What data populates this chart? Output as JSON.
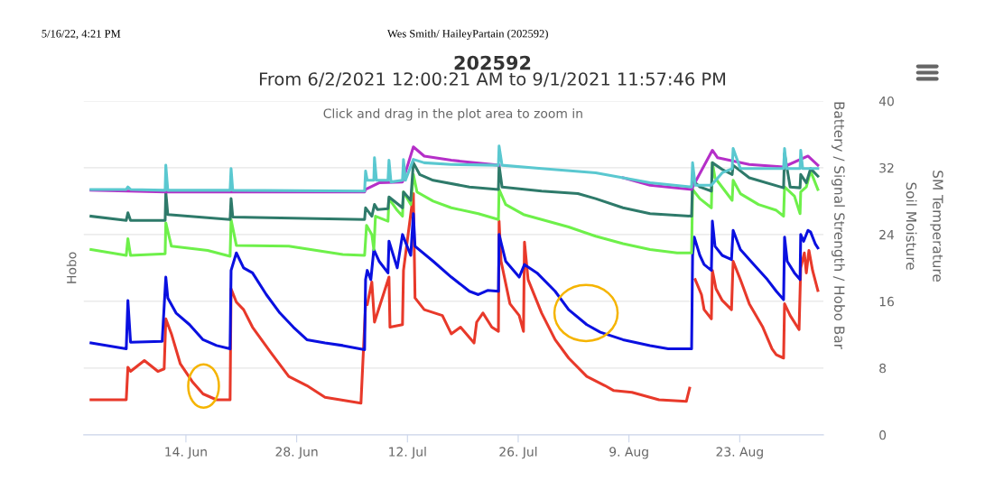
{
  "chart_data": {
    "type": "line",
    "title": "202592",
    "subtitle": "From 6/2/2021 12:00:21 AM to 9/1/2021 11:57:46 PM",
    "ylabel": "Hobo",
    "y2label": "Battery / Signal Strength / Hobo Bar",
    "annotations": [
      "5/16/22, 4:21 PM",
      "Wes Smith/ HaileyPartain (202592)",
      "Click and drag in the plot area to zoom in",
      "Soil Moisture",
      "SM Temperature"
    ],
    "xlim": [
      "2021-06-01T02:00",
      "2021-09-02T14:00"
    ],
    "xticks": [
      {
        "value": "2021-06-14",
        "label": "14. Jun"
      },
      {
        "value": "2021-06-28",
        "label": "28. Jun"
      },
      {
        "value": "2021-07-12",
        "label": "12. Jul"
      },
      {
        "value": "2021-07-26",
        "label": "26. Jul"
      },
      {
        "value": "2021-08-09",
        "label": "9. Aug"
      },
      {
        "value": "2021-08-23",
        "label": "23. Aug"
      }
    ],
    "ylim": [
      0,
      40
    ],
    "yticks": [
      0,
      8,
      16,
      24,
      32,
      40
    ],
    "grid": "y",
    "legend": false,
    "marker": "none",
    "line_style": "solid",
    "series": [
      {
        "color": "#e8392a",
        "x": [
          "2021-06-02T00:00",
          "2021-06-06T11:00",
          "2021-06-06T16:00",
          "2021-06-07T00:00",
          "2021-06-08T18:00",
          "2021-06-10T11:00",
          "2021-06-11T06:00",
          "2021-06-11T11:00",
          "2021-06-12T04:00",
          "2021-06-13T07:00",
          "2021-06-14T19:00",
          "2021-06-16T04:00",
          "2021-06-17T21:00",
          "2021-06-19T14:00",
          "2021-06-19T17:00",
          "2021-06-20T09:00",
          "2021-06-21T07:00",
          "2021-06-22T10:00",
          "2021-06-24T17:00",
          "2021-06-27T00:00",
          "2021-06-29T07:00",
          "2021-07-01T14:00",
          "2021-07-06T03:00",
          "2021-07-06T17:00",
          "2021-07-06T22:00",
          "2021-07-07T12:00",
          "2021-07-07T20:00",
          "2021-07-09T16:00",
          "2021-07-09T19:00",
          "2021-07-11T09:00",
          "2021-07-11T12:00",
          "2021-07-12T18:00",
          "2021-07-12T23:00",
          "2021-07-14T03:00",
          "2021-07-16T10:00",
          "2021-07-17T13:00",
          "2021-07-18T17:00",
          "2021-07-20T10:00",
          "2021-07-20T18:00",
          "2021-07-21T13:00",
          "2021-07-22T16:00",
          "2021-07-23T12:00",
          "2021-07-23T14:00",
          "2021-07-23T20:00",
          "2021-07-24T23:00",
          "2021-07-26T03:00",
          "2021-07-26T16:00",
          "2021-07-26T19:00",
          "2021-07-27T06:00",
          "2021-07-28T23:00",
          "2021-07-30T16:00",
          "2021-08-01T09:00",
          "2021-08-03T16:00",
          "2021-08-05T23:00",
          "2021-08-07T02:00",
          "2021-08-09T09:00",
          "2021-08-12T19:00",
          "2021-08-16T06:00",
          "2021-08-16T16:00",
          "2021-08-17T01:00",
          "2021-08-17T09:00",
          "2021-08-18T04:00",
          "2021-08-18T12:00",
          "2021-08-19T10:00",
          "2021-08-19T13:00",
          "2021-08-20T00:00",
          "2021-08-20T19:00",
          "2021-08-21T23:00",
          "2021-08-22T04:00",
          "2021-08-23T02:00",
          "2021-08-24T05:00",
          "2021-08-25T22:00",
          "2021-08-27T02:00",
          "2021-08-27T15:00",
          "2021-08-28T13:00",
          "2021-08-28T16:00",
          "2021-08-29T09:00",
          "2021-08-30T12:00",
          "2021-08-30T17:00",
          "2021-08-31T04:00",
          "2021-08-31T10:00",
          "2021-08-31T18:00",
          "2021-09-01T05:00",
          "2021-09-01T21:00"
        ],
        "values": [
          4.2,
          4.2,
          8.1,
          7.6,
          8.9,
          7.6,
          7.9,
          13.9,
          12.1,
          8.5,
          6.4,
          4.9,
          4.2,
          4.2,
          17.5,
          15.9,
          15.0,
          12.9,
          9.9,
          7.0,
          5.9,
          4.5,
          3.8,
          15.6,
          15.6,
          18.3,
          13.5,
          18.9,
          12.9,
          13.2,
          19.7,
          28.9,
          16.4,
          15.0,
          14.3,
          12.1,
          12.9,
          11.0,
          13.5,
          14.6,
          12.9,
          12.4,
          25.6,
          20.8,
          15.7,
          14.3,
          12.4,
          23.1,
          18.6,
          14.6,
          11.4,
          9.2,
          7.0,
          5.9,
          5.3,
          5.1,
          4.2,
          4.0,
          5.6,
          null,
          18.6,
          16.8,
          15.0,
          13.9,
          19.7,
          17.5,
          16.1,
          15.0,
          20.8,
          18.6,
          15.7,
          12.9,
          10.3,
          9.6,
          9.2,
          15.7,
          14.3,
          12.6,
          20.0,
          21.8,
          19.4,
          22.1,
          19.7,
          17.3
        ]
      },
      {
        "color": "#0a10e0",
        "x": [
          "2021-06-02T00:00",
          "2021-06-06T11:00",
          "2021-06-06T16:00",
          "2021-06-07T00:00",
          "2021-06-11T00:00",
          "2021-06-11T11:00",
          "2021-06-11T17:00",
          "2021-06-12T18:00",
          "2021-06-14T11:00",
          "2021-06-16T04:00",
          "2021-06-17T21:00",
          "2021-06-19T14:00",
          "2021-06-19T17:00",
          "2021-06-20T09:00",
          "2021-06-21T07:00",
          "2021-06-22T10:00",
          "2021-06-24T04:00",
          "2021-06-25T21:00",
          "2021-06-27T14:00",
          "2021-06-29T07:00",
          "2021-07-01T14:00",
          "2021-07-03T20:00",
          "2021-07-06T14:00",
          "2021-07-06T17:00",
          "2021-07-06T22:00",
          "2021-07-07T09:00",
          "2021-07-07T18:00",
          "2021-07-08T10:00",
          "2021-07-09T13:00",
          "2021-07-09T16:00",
          "2021-07-10T17:00",
          "2021-07-11T09:00",
          "2021-07-12T10:00",
          "2021-07-12T18:00",
          "2021-07-12T23:00",
          "2021-07-15T06:00",
          "2021-07-17T13:00",
          "2021-07-19T20:00",
          "2021-07-20T23:00",
          "2021-07-22T03:00",
          "2021-07-23T12:00",
          "2021-07-23T14:00",
          "2021-07-24T10:00",
          "2021-07-26T03:00",
          "2021-07-26T19:00",
          "2021-07-28T09:00",
          "2021-07-30T16:00",
          "2021-08-01T09:00",
          "2021-08-03T16:00",
          "2021-08-05T09:00",
          "2021-08-08T06:00",
          "2021-08-11T16:00",
          "2021-08-13T23:00",
          "2021-08-16T22:00",
          "2021-08-17T01:00",
          "2021-08-17T06:00",
          "2021-08-17T23:00",
          "2021-08-18T12:00",
          "2021-08-19T10:00",
          "2021-08-19T13:00",
          "2021-08-19T21:00",
          "2021-08-20T19:00",
          "2021-08-21T23:00",
          "2021-08-22T04:00",
          "2021-08-23T02:00",
          "2021-08-24T19:00",
          "2021-08-26T12:00",
          "2021-08-27T15:00",
          "2021-08-28T13:00",
          "2021-08-28T16:00",
          "2021-08-29T00:00",
          "2021-08-29T22:00",
          "2021-08-30T15:00",
          "2021-08-30T17:00",
          "2021-08-31T02:00",
          "2021-08-31T15:00",
          "2021-08-31T23:00",
          "2021-09-01T13:00",
          "2021-09-01T21:00"
        ],
        "values": [
          11.0,
          10.3,
          16.1,
          11.1,
          11.2,
          18.9,
          16.4,
          14.6,
          13.2,
          11.4,
          10.7,
          10.3,
          19.7,
          21.8,
          20.0,
          19.4,
          16.8,
          14.6,
          12.9,
          11.4,
          11.0,
          10.7,
          10.2,
          18.6,
          19.7,
          18.6,
          22.2,
          20.8,
          19.4,
          23.2,
          20.0,
          24.0,
          21.5,
          26.5,
          22.6,
          20.8,
          18.9,
          17.2,
          16.8,
          17.3,
          17.2,
          24.0,
          20.8,
          18.9,
          20.4,
          19.4,
          17.2,
          15.0,
          13.2,
          12.3,
          11.4,
          10.7,
          10.3,
          10.3,
          21.5,
          23.7,
          21.5,
          20.4,
          19.7,
          25.6,
          22.6,
          21.5,
          21.0,
          24.5,
          22.2,
          20.4,
          18.6,
          17.2,
          16.2,
          23.7,
          20.8,
          19.4,
          18.6,
          24.0,
          23.2,
          24.5,
          24.3,
          22.9,
          22.4
        ]
      },
      {
        "color": "#6ef04a",
        "x": [
          "2021-06-02T00:00",
          "2021-06-06T11:00",
          "2021-06-06T16:00",
          "2021-06-07T00:00",
          "2021-06-11T09:00",
          "2021-06-11T11:00",
          "2021-06-12T04:00",
          "2021-06-16T18:00",
          "2021-06-19T14:00",
          "2021-06-19T17:00",
          "2021-06-20T09:00",
          "2021-06-27T00:00",
          "2021-07-03T20:00",
          "2021-07-06T14:00",
          "2021-07-06T20:00",
          "2021-07-07T12:00",
          "2021-07-07T18:00",
          "2021-07-07T23:00",
          "2021-07-09T13:00",
          "2021-07-09T16:00",
          "2021-07-10T17:00",
          "2021-07-11T09:00",
          "2021-07-11T12:00",
          "2021-07-12T10:00",
          "2021-07-12T18:00",
          "2021-07-13T05:00",
          "2021-07-15T06:00",
          "2021-07-17T13:00",
          "2021-07-20T23:00",
          "2021-07-23T12:00",
          "2021-07-23T14:00",
          "2021-07-24T10:00",
          "2021-07-26T16:00",
          "2021-07-28T23:00",
          "2021-08-01T09:00",
          "2021-08-04T19:00",
          "2021-08-08T06:00",
          "2021-08-11T16:00",
          "2021-08-15T02:00",
          "2021-08-16T22:00",
          "2021-08-17T01:00",
          "2021-08-17T23:00",
          "2021-08-19T10:00",
          "2021-08-19T13:00",
          "2021-08-19T21:00",
          "2021-08-22T01:00",
          "2021-08-22T04:00",
          "2021-08-23T02:00",
          "2021-08-25T09:00",
          "2021-08-27T15:00",
          "2021-08-28T13:00",
          "2021-08-28T16:00",
          "2021-08-29T22:00",
          "2021-08-30T15:00",
          "2021-08-30T17:00",
          "2021-08-31T10:00",
          "2021-08-31T23:00",
          "2021-09-01T21:00"
        ],
        "values": [
          22.2,
          21.5,
          23.5,
          21.5,
          21.7,
          25.4,
          22.6,
          22.1,
          21.4,
          25.8,
          22.7,
          22.6,
          21.6,
          21.5,
          25.1,
          24.0,
          22.2,
          26.2,
          25.6,
          28.3,
          26.9,
          26.2,
          29.1,
          27.6,
          31.2,
          29.1,
          28.0,
          27.2,
          26.5,
          25.8,
          29.4,
          27.6,
          26.4,
          25.8,
          24.9,
          23.8,
          22.9,
          22.2,
          21.8,
          21.8,
          29.4,
          28.3,
          27.2,
          32.6,
          30.8,
          28.1,
          30.5,
          28.9,
          27.6,
          26.9,
          26.2,
          29.7,
          28.6,
          26.5,
          29.1,
          29.7,
          31.6,
          29.4
        ]
      },
      {
        "color": "#2e7a6a",
        "x": [
          "2021-06-02T00:00",
          "2021-06-06T11:00",
          "2021-06-06T16:00",
          "2021-06-07T00:00",
          "2021-06-11T09:00",
          "2021-06-11T11:00",
          "2021-06-11T17:00",
          "2021-06-19T14:00",
          "2021-06-19T17:00",
          "2021-06-19T22:00",
          "2021-07-06T14:00",
          "2021-07-06T17:00",
          "2021-07-07T12:00",
          "2021-07-07T20:00",
          "2021-07-08T05:00",
          "2021-07-09T13:00",
          "2021-07-09T16:00",
          "2021-07-11T09:00",
          "2021-07-11T12:00",
          "2021-07-12T10:00",
          "2021-07-12T18:00",
          "2021-07-13T13:00",
          "2021-07-15T06:00",
          "2021-07-19T20:00",
          "2021-07-23T12:00",
          "2021-07-23T14:00",
          "2021-07-23T23:00",
          "2021-07-28T23:00",
          "2021-08-02T13:00",
          "2021-08-04T19:00",
          "2021-08-08T06:00",
          "2021-08-11T16:00",
          "2021-08-16T22:00",
          "2021-08-17T01:00",
          "2021-08-17T23:00",
          "2021-08-19T10:00",
          "2021-08-19T13:00",
          "2021-08-20T19:00",
          "2021-08-22T01:00",
          "2021-08-22T04:00",
          "2021-08-24T05:00",
          "2021-08-28T13:00",
          "2021-08-28T16:00",
          "2021-08-29T09:00",
          "2021-08-30T15:00",
          "2021-08-30T17:00",
          "2021-08-31T10:00",
          "2021-08-31T23:00",
          "2021-09-01T21:00"
        ],
        "values": [
          26.2,
          25.7,
          26.6,
          25.7,
          25.7,
          29.1,
          26.4,
          25.8,
          28.3,
          26.1,
          25.8,
          27.2,
          26.2,
          27.6,
          27.0,
          27.1,
          28.5,
          27.2,
          29.1,
          28.1,
          32.6,
          31.2,
          30.5,
          29.7,
          29.4,
          32.3,
          29.7,
          29.2,
          28.9,
          28.3,
          27.2,
          26.5,
          26.2,
          30.5,
          29.7,
          29.2,
          32.6,
          31.8,
          31.2,
          32.3,
          30.8,
          29.6,
          33.7,
          29.7,
          29.6,
          31.2,
          30.2,
          31.9,
          31.0
        ]
      },
      {
        "color": "#b52fc8",
        "x": [
          "2021-06-02T00:00",
          "2021-06-11T11:00",
          "2021-07-06T14:00",
          "2021-07-06T17:00",
          "2021-07-08T10:00",
          "2021-07-11T09:00",
          "2021-07-12T18:00",
          "2021-07-14T03:00",
          "2021-07-17T13:00",
          "2021-07-23T14:00",
          "2021-07-28T23:00",
          "2021-08-04T19:00",
          "2021-08-08T06:00",
          "2021-08-11T16:00",
          "2021-08-16T22:00",
          "2021-08-17T01:00",
          "2021-08-19T13:00",
          "2021-08-20T05:00",
          "2021-08-24T05:00",
          "2021-08-28T13:00",
          "2021-08-31T15:00",
          "2021-09-01T21:00"
        ],
        "values": [
          29.3,
          29.1,
          29.1,
          29.4,
          30.2,
          30.3,
          34.5,
          33.4,
          32.9,
          32.3,
          null,
          null,
          30.8,
          29.9,
          29.4,
          29.7,
          34.1,
          33.2,
          32.4,
          32.1,
          33.4,
          32.3
        ]
      },
      {
        "color": "#5ac8d0",
        "x": [
          "2021-06-02T00:00",
          "2021-06-06T11:00",
          "2021-06-06T16:00",
          "2021-06-07T00:00",
          "2021-06-11T09:00",
          "2021-06-11T11:00",
          "2021-06-11T17:00",
          "2021-06-19T14:00",
          "2021-06-19T17:00",
          "2021-06-19T22:00",
          "2021-07-06T14:00",
          "2021-07-06T17:00",
          "2021-07-06T22:00",
          "2021-07-07T18:00",
          "2021-07-07T20:00",
          "2021-07-08T02:00",
          "2021-07-09T13:00",
          "2021-07-09T16:00",
          "2021-07-09T22:00",
          "2021-07-11T09:00",
          "2021-07-11T12:00",
          "2021-07-11T18:00",
          "2021-07-12T18:00",
          "2021-07-14T03:00",
          "2021-07-17T13:00",
          "2021-07-23T12:00",
          "2021-07-23T14:00",
          "2021-07-23T23:00",
          "2021-07-28T23:00",
          "2021-08-04T19:00",
          "2021-08-08T06:00",
          "2021-08-11T16:00",
          "2021-08-16T22:00",
          "2021-08-17T01:00",
          "2021-08-17T09:00",
          "2021-08-19T10:00",
          "2021-08-20T19:00",
          "2021-08-22T01:00",
          "2021-08-22T04:00",
          "2021-08-23T02:00",
          "2021-08-28T13:00",
          "2021-08-28T16:00",
          "2021-08-28T22:00",
          "2021-08-30T15:00",
          "2021-08-30T17:00",
          "2021-08-30T23:00",
          "2021-09-01T21:00"
        ],
        "values": [
          29.4,
          29.4,
          29.7,
          29.4,
          29.3,
          32.3,
          29.3,
          29.3,
          31.9,
          29.3,
          29.2,
          31.6,
          30.5,
          30.5,
          33.2,
          30.5,
          30.5,
          32.9,
          30.3,
          30.5,
          33.0,
          30.5,
          33.0,
          32.6,
          32.4,
          32.3,
          34.6,
          32.3,
          31.9,
          31.4,
          30.8,
          30.2,
          29.7,
          32.6,
          29.9,
          29.9,
          31.4,
          31.9,
          34.3,
          31.9,
          31.9,
          34.3,
          31.9,
          31.9,
          34.1,
          31.9,
          31.9
        ]
      }
    ]
  }
}
